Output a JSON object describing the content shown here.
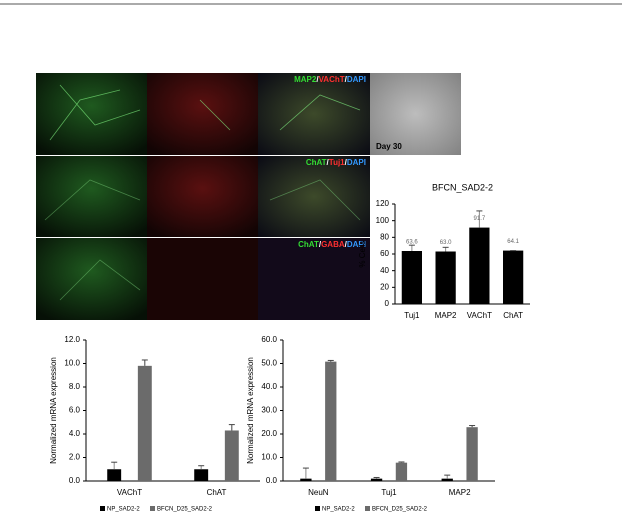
{
  "panels": {
    "labels": [
      {
        "parts": [
          "MAP2",
          "/",
          "VAChT",
          "/",
          "DAPI"
        ],
        "colors": [
          "#33dd33",
          "#ffffff",
          "#ff3030",
          "#ffffff",
          "#3399ff"
        ]
      },
      {
        "parts": [
          "ChAT",
          "/",
          "Tuj1",
          "/",
          "DAPI"
        ],
        "colors": [
          "#33dd33",
          "#ffffff",
          "#ff3030",
          "#ffffff",
          "#3399ff"
        ]
      },
      {
        "parts": [
          "ChAT",
          "/",
          "GABA",
          "/",
          "DAPI"
        ],
        "colors": [
          "#33dd33",
          "#ffffff",
          "#ff3030",
          "#ffffff",
          "#3399ff"
        ]
      }
    ],
    "phase_label": "Day 30"
  },
  "chart_data": [
    {
      "type": "bar",
      "title": "BFCN_SAD2-2",
      "y_label": "% Cells",
      "categories": [
        "Tuj1",
        "MAP2",
        "VAChT",
        "ChAT"
      ],
      "values": [
        63.6,
        63.0,
        91.7,
        64.1
      ],
      "value_labels": [
        "63.6",
        "63.0",
        "91.7",
        "64.1"
      ],
      "errors": [
        7,
        5,
        20,
        0
      ],
      "color": "#000000",
      "ylim": [
        0,
        120
      ],
      "yticks": [
        0,
        20,
        40,
        60,
        80,
        100,
        120
      ]
    },
    {
      "type": "bar",
      "y_label": "Normalized mRNA expression",
      "categories": [
        "VAChT",
        "ChAT"
      ],
      "series": [
        {
          "name": "NP_SAD2-2",
          "color": "#000000",
          "values": [
            1.0,
            1.0
          ],
          "errors": [
            0.6,
            0.3
          ]
        },
        {
          "name": "BFCN_D25_SAD2-2",
          "color": "#6b6b6b",
          "values": [
            9.8,
            4.3
          ],
          "errors": [
            0.5,
            0.5
          ]
        }
      ],
      "ylim": [
        0,
        12
      ],
      "yticks": [
        {
          "value": 0,
          "label": "0.0"
        },
        {
          "value": 2,
          "label": "2.0"
        },
        {
          "value": 4,
          "label": "4.0"
        },
        {
          "value": 6,
          "label": "6.0"
        },
        {
          "value": 8,
          "label": "8.0"
        },
        {
          "value": 10,
          "label": "10.0"
        },
        {
          "value": 12,
          "label": "12.0"
        }
      ]
    },
    {
      "type": "bar",
      "y_label": "Normalized mRNA expression",
      "categories": [
        "NeuN",
        "Tuj1",
        "MAP2"
      ],
      "series": [
        {
          "name": "NP_SAD2-2",
          "color": "#000000",
          "values": [
            1.0,
            1.0,
            1.0
          ],
          "errors": [
            4.5,
            0.5,
            1.5
          ]
        },
        {
          "name": "BFCN_D25_SAD2-2",
          "color": "#6b6b6b",
          "values": [
            50.8,
            7.8,
            22.9
          ],
          "errors": [
            0.5,
            0.3,
            0.7
          ]
        }
      ],
      "ylim": [
        0,
        60
      ],
      "yticks": [
        {
          "value": 0,
          "label": "0.0"
        },
        {
          "value": 10,
          "label": "10.0"
        },
        {
          "value": 20,
          "label": "20.0"
        },
        {
          "value": 30,
          "label": "30.0"
        },
        {
          "value": 40,
          "label": "40.0"
        },
        {
          "value": 50,
          "label": "50.0"
        },
        {
          "value": 60,
          "label": "60.0"
        }
      ]
    }
  ]
}
